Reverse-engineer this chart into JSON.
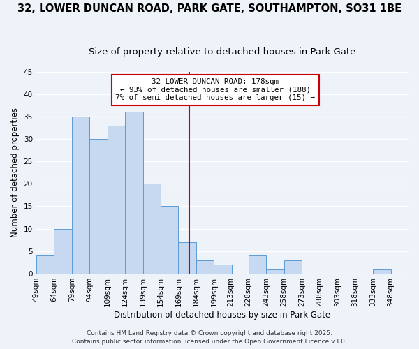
{
  "title": "32, LOWER DUNCAN ROAD, PARK GATE, SOUTHAMPTON, SO31 1BE",
  "subtitle": "Size of property relative to detached houses in Park Gate",
  "xlabel": "Distribution of detached houses by size in Park Gate",
  "ylabel": "Number of detached properties",
  "bar_left_edges": [
    49,
    64,
    79,
    94,
    109,
    124,
    139,
    154,
    169,
    184,
    199,
    213,
    228,
    243,
    258,
    273,
    288,
    303,
    318,
    333
  ],
  "bar_heights": [
    4,
    10,
    35,
    30,
    33,
    36,
    20,
    15,
    7,
    3,
    2,
    0,
    4,
    1,
    3,
    0,
    0,
    0,
    0,
    1
  ],
  "bin_width": 15,
  "tick_labels": [
    "49sqm",
    "64sqm",
    "79sqm",
    "94sqm",
    "109sqm",
    "124sqm",
    "139sqm",
    "154sqm",
    "169sqm",
    "184sqm",
    "199sqm",
    "213sqm",
    "228sqm",
    "243sqm",
    "258sqm",
    "273sqm",
    "288sqm",
    "303sqm",
    "318sqm",
    "333sqm",
    "348sqm"
  ],
  "tick_positions": [
    49,
    64,
    79,
    94,
    109,
    124,
    139,
    154,
    169,
    184,
    199,
    213,
    228,
    243,
    258,
    273,
    288,
    303,
    318,
    333,
    348
  ],
  "bar_color": "#c6d9f0",
  "bar_edge_color": "#5b9bd5",
  "vline_x": 178,
  "vline_color": "#cc0000",
  "ylim": [
    0,
    45
  ],
  "yticks": [
    0,
    5,
    10,
    15,
    20,
    25,
    30,
    35,
    40,
    45
  ],
  "annotation_title": "32 LOWER DUNCAN ROAD: 178sqm",
  "annotation_line1": "← 93% of detached houses are smaller (188)",
  "annotation_line2": "7% of semi-detached houses are larger (15) →",
  "footer_line1": "Contains HM Land Registry data © Crown copyright and database right 2025.",
  "footer_line2": "Contains public sector information licensed under the Open Government Licence v3.0.",
  "bg_color": "#eef2f9",
  "grid_color": "#ffffff",
  "title_fontsize": 10.5,
  "subtitle_fontsize": 9.5,
  "axis_label_fontsize": 8.5,
  "tick_fontsize": 7.5,
  "annotation_fontsize": 7.8,
  "footer_fontsize": 6.5
}
